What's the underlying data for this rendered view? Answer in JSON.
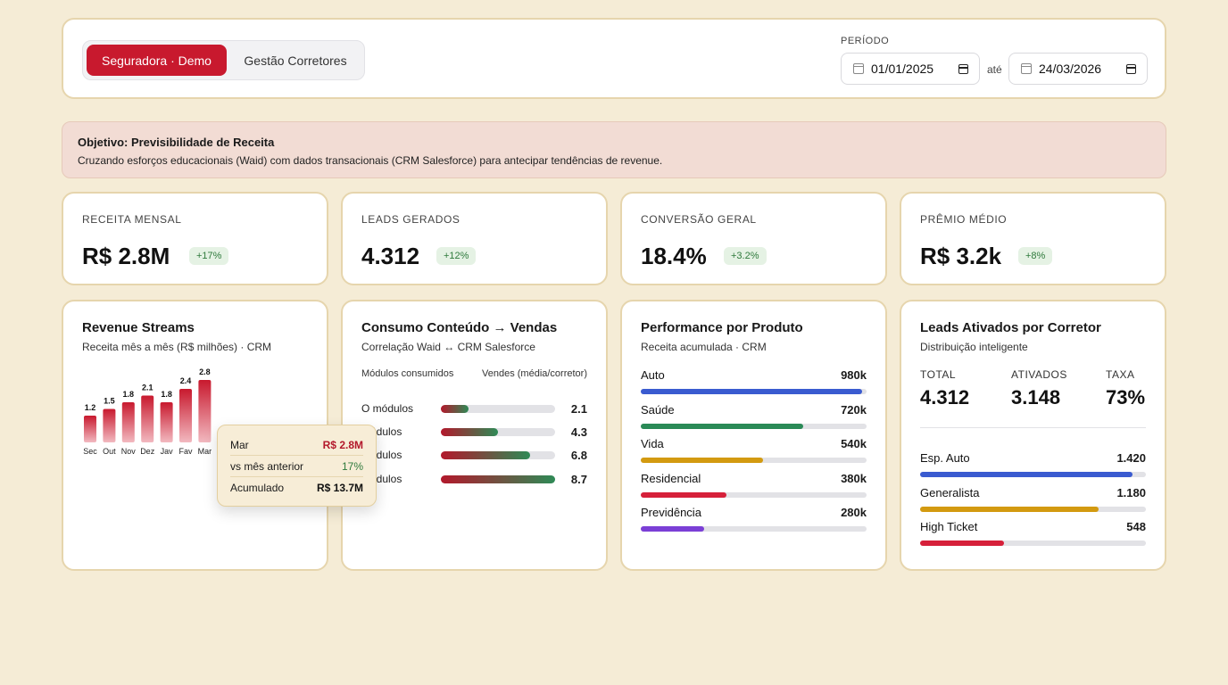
{
  "tabs": {
    "active": "Seguradora · Demo",
    "inactive": "Gestão Corretores"
  },
  "period": {
    "label": "PERÍODO",
    "from": "01/01/2025",
    "separator": "até",
    "to": "24/03/2026"
  },
  "objective": {
    "title": "Objetivo: Previsibilidade de Receita",
    "description": "Cruzando esforços educacionais (Waid) com dados transacionais (CRM Salesforce) para antecipar tendências de revenue."
  },
  "kpis": [
    {
      "label": "RECEITA MENSAL",
      "value": "R$ 2.8M",
      "delta": "+17%"
    },
    {
      "label": "LEADS GERADOS",
      "value": "4.312",
      "delta": "+12%"
    },
    {
      "label": "CONVERSÃO GERAL",
      "value": "18.4%",
      "delta": "+3.2%"
    },
    {
      "label": "PRÊMIO MÉDIO",
      "value": "R$ 3.2k",
      "delta": "+8%"
    }
  ],
  "revenue": {
    "title": "Revenue Streams",
    "subtitle": "Receita mês a mês (R$ milhões) · CRM",
    "tooltip": {
      "month": "Mar",
      "month_value": "R$ 2.8M",
      "prev_label": "vs mês anterior",
      "prev_value": "17%",
      "acc_label": "Acumulado",
      "acc_value": "R$ 13.7M"
    }
  },
  "chart_data": {
    "type": "bar",
    "categories": [
      "Sec",
      "Out",
      "Nov",
      "Dez",
      "Jav",
      "Fav",
      "Mar"
    ],
    "values": [
      1.2,
      1.5,
      1.8,
      2.1,
      1.8,
      2.4,
      2.8
    ],
    "value_labels": [
      "1.2",
      "1.5",
      "1.8",
      "2.1",
      "1.8",
      "2.4",
      "2.8"
    ],
    "ylim": [
      0,
      2.8
    ],
    "grid": false,
    "color": "#c8192e"
  },
  "consumo": {
    "title": "Consumo Conteúdo → Vendas",
    "subtitle": "Correlação Waid ↔ CRM Salesforce",
    "col_left": "Módulos consumidos",
    "col_right": "Vendes (média/corretor)",
    "rows": [
      {
        "label": "O módulos",
        "value": "2.1",
        "fill": 0.24
      },
      {
        "label": "módulos",
        "value": "4.3",
        "fill": 0.5
      },
      {
        "label": "módulos",
        "value": "6.8",
        "fill": 0.78
      },
      {
        "label": "módulos",
        "value": "8.7",
        "fill": 1.0
      }
    ]
  },
  "produto": {
    "title": "Performance por Produto",
    "subtitle": "Receita acumulada · CRM",
    "rows": [
      {
        "label": "Auto",
        "value": "980k",
        "fill": 0.98,
        "color": "#3a5bd0"
      },
      {
        "label": "Saúde",
        "value": "720k",
        "fill": 0.72,
        "color": "#2a8a56"
      },
      {
        "label": "Vida",
        "value": "540k",
        "fill": 0.54,
        "color": "#d39a10"
      },
      {
        "label": "Residencial",
        "value": "380k",
        "fill": 0.38,
        "color": "#d6203a"
      },
      {
        "label": "Previdência",
        "value": "280k",
        "fill": 0.28,
        "color": "#7b3fd6"
      }
    ]
  },
  "corretor": {
    "title": "Leads Ativados por Corretor",
    "subtitle": "Distribuição inteligente",
    "stats": [
      {
        "label": "TOTAL",
        "value": "4.312"
      },
      {
        "label": "ATIVADOS",
        "value": "3.148"
      },
      {
        "label": "TAXA",
        "value": "73%"
      }
    ],
    "rows": [
      {
        "label": "Esp. Auto",
        "value": "1.420",
        "fill": 0.94,
        "color": "#3a5bd0"
      },
      {
        "label": "Generalista",
        "value": "1.180",
        "fill": 0.79,
        "color": "#d39a10"
      },
      {
        "label": "High Ticket",
        "value": "548",
        "fill": 0.37,
        "color": "#d6203a"
      }
    ]
  }
}
